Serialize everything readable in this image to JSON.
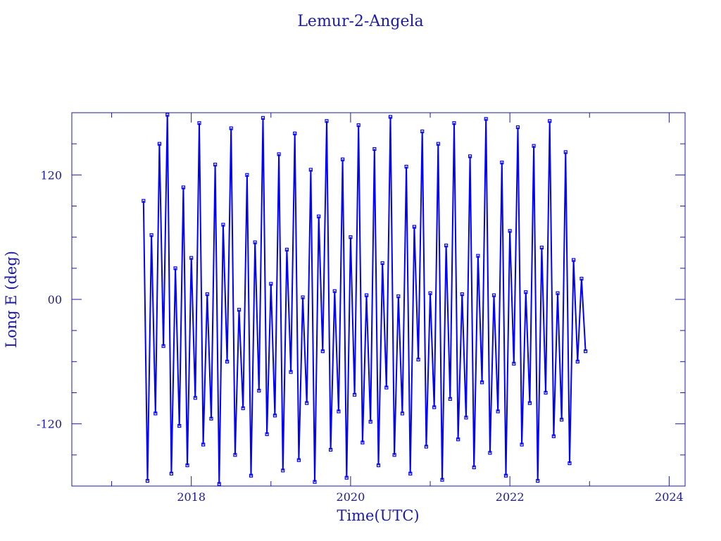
{
  "chart_data": {
    "type": "line",
    "title": "Lemur-2-Angela",
    "xlabel": "Time(UTC)",
    "ylabel": "Long E (deg)",
    "xlim": [
      2016.5,
      2024.2
    ],
    "ylim": [
      -180,
      180
    ],
    "xticks": [
      2018,
      2020,
      2022,
      2024
    ],
    "xtick_labels": [
      "2018",
      "2020",
      "2022",
      "2024"
    ],
    "yticks": [
      120,
      0,
      -120
    ],
    "ytick_labels": [
      "120",
      "00",
      "-120"
    ],
    "grid": false,
    "markers": "square",
    "colors": {
      "series": "#0000ff",
      "axes": "#1a1aa6",
      "text": "#1a1aa6"
    },
    "series": [
      {
        "x": [
          2017.4,
          2017.45,
          2017.5,
          2017.55,
          2017.6,
          2017.65,
          2017.7,
          2017.75,
          2017.8,
          2017.85,
          2017.9,
          2017.95,
          2018.0,
          2018.05,
          2018.1,
          2018.15,
          2018.2,
          2018.25,
          2018.3,
          2018.35,
          2018.4,
          2018.45,
          2018.5,
          2018.55,
          2018.6,
          2018.65,
          2018.7,
          2018.75,
          2018.8,
          2018.85,
          2018.9,
          2018.95,
          2019.0,
          2019.05,
          2019.1,
          2019.15,
          2019.2,
          2019.25,
          2019.3,
          2019.35,
          2019.4,
          2019.45,
          2019.5,
          2019.55,
          2019.6,
          2019.65,
          2019.7,
          2019.75,
          2019.8,
          2019.85,
          2019.9,
          2019.95,
          2020.0,
          2020.05,
          2020.1,
          2020.15,
          2020.2,
          2020.25,
          2020.3,
          2020.35,
          2020.4,
          2020.45,
          2020.5,
          2020.55,
          2020.6,
          2020.65,
          2020.7,
          2020.75,
          2020.8,
          2020.85,
          2020.9,
          2020.95,
          2021.0,
          2021.05,
          2021.1,
          2021.15,
          2021.2,
          2021.25,
          2021.3,
          2021.35,
          2021.4,
          2021.45,
          2021.5,
          2021.55,
          2021.6,
          2021.65,
          2021.7,
          2021.75,
          2021.8,
          2021.85,
          2021.9,
          2021.95,
          2022.0,
          2022.05,
          2022.1,
          2022.15,
          2022.2,
          2022.25,
          2022.3,
          2022.35,
          2022.4,
          2022.45,
          2022.5,
          2022.55,
          2022.6,
          2022.65,
          2022.7,
          2022.75,
          2022.8,
          2022.85,
          2022.9,
          2022.95
        ],
        "y": [
          95,
          -175,
          62,
          -110,
          150,
          -45,
          178,
          -168,
          30,
          -122,
          108,
          -160,
          40,
          -95,
          170,
          -140,
          5,
          -115,
          130,
          -178,
          72,
          -60,
          165,
          -150,
          -10,
          -105,
          120,
          -170,
          55,
          -88,
          175,
          -130,
          15,
          -112,
          140,
          -165,
          48,
          -70,
          160,
          -155,
          2,
          -100,
          125,
          -176,
          80,
          -50,
          172,
          -145,
          8,
          -108,
          135,
          -172,
          60,
          -92,
          168,
          -138,
          4,
          -118,
          145,
          -160,
          35,
          -85,
          176,
          -150,
          3,
          -110,
          128,
          -168,
          70,
          -58,
          162,
          -142,
          6,
          -104,
          150,
          -174,
          52,
          -96,
          170,
          -135,
          5,
          -114,
          138,
          -162,
          42,
          -80,
          174,
          -148,
          4,
          -108,
          132,
          -170,
          66,
          -62,
          166,
          -140,
          7,
          -100,
          148,
          -175,
          50,
          -90,
          172,
          -132,
          6,
          -116,
          142,
          -158,
          38,
          -60,
          20,
          -50
        ]
      }
    ]
  }
}
